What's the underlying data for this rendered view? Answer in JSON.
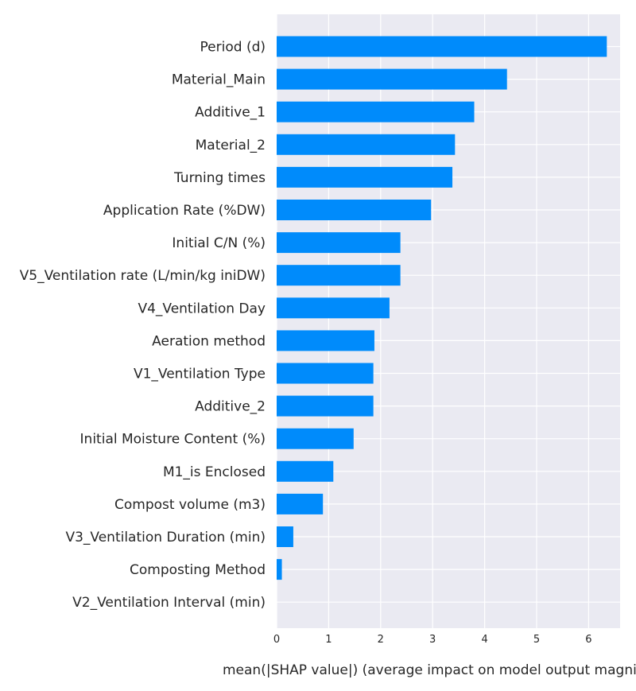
{
  "chart_data": {
    "type": "bar",
    "orientation": "horizontal",
    "categories": [
      "Period (d)",
      "Material_Main",
      "Additive_1",
      "Material_2",
      "Turning times",
      "Application Rate (%DW)",
      "Initial C/N (%)",
      "V5_Ventilation rate (L/min/kg iniDW)",
      "V4_Ventilation Day",
      "Aeration method",
      "V1_Ventilation Type",
      "Additive_2",
      "Initial Moisture Content (%)",
      "M1_is Enclosed",
      "Compost volume (m3)",
      "V3_Ventilation Duration (min)",
      "Composting Method",
      "V2_Ventilation Interval (min)"
    ],
    "values": [
      6.35,
      4.43,
      3.8,
      3.43,
      3.38,
      2.97,
      2.38,
      2.38,
      2.17,
      1.88,
      1.86,
      1.86,
      1.48,
      1.09,
      0.89,
      0.32,
      0.1,
      0.0
    ],
    "xlabel": "mean(|SHAP value|) (average impact on model output magnitude)",
    "xticks": [
      0,
      1,
      2,
      3,
      4,
      5,
      6
    ],
    "xlim": [
      0,
      6.65
    ],
    "grid": true,
    "colors": {
      "bar": "#008bfb",
      "background": "#eaeaf2",
      "grid": "#ffffff",
      "text": "#262626"
    }
  }
}
